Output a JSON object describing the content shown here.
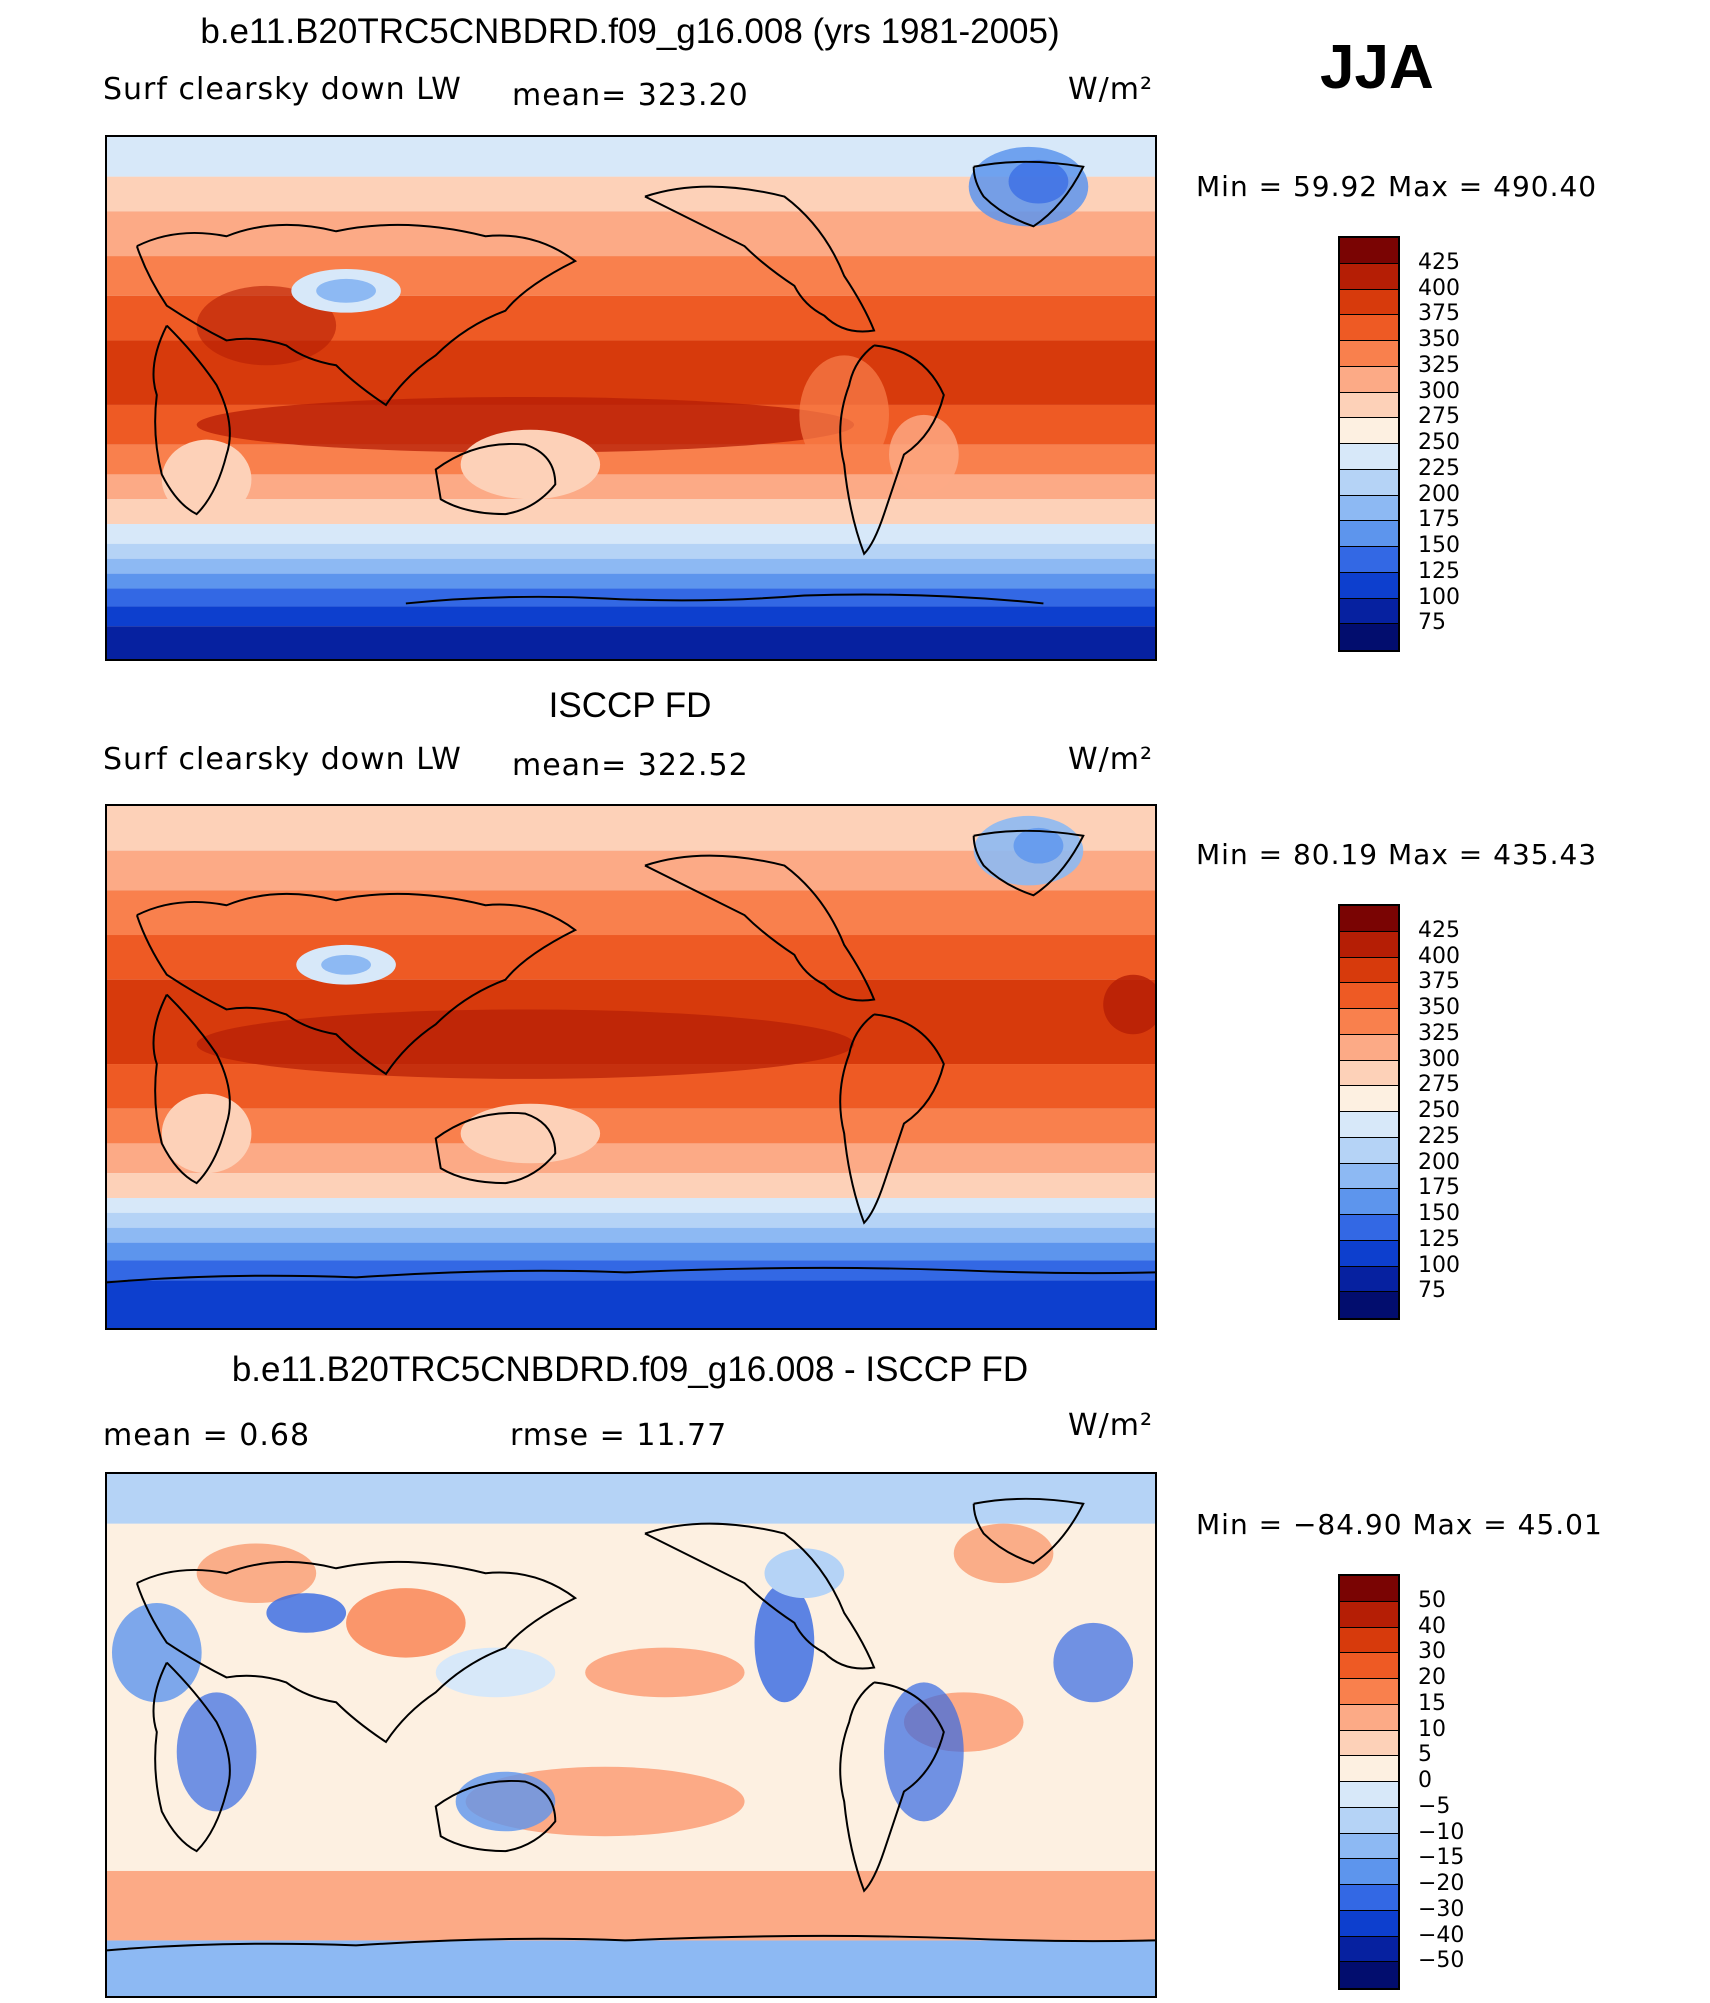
{
  "season": "JJA",
  "panels": [
    {
      "title": "b.e11.B20TRC5CNBDRD.f09_g16.008 (yrs 1981-2005)",
      "variable": "Surf clearsky down LW",
      "stat1": "mean= 323.20",
      "stat2": "",
      "units": "W/m²",
      "minmax": "Min =   59.92  Max  =  490.40",
      "colorbar": {
        "labels": [
          "425",
          "400",
          "375",
          "350",
          "325",
          "300",
          "275",
          "250",
          "225",
          "200",
          "175",
          "150",
          "125",
          "100",
          "75"
        ],
        "colors": [
          "#7a0403",
          "#b51e05",
          "#d73a0c",
          "#ee5a24",
          "#f9804d",
          "#fcaa86",
          "#fdd1b8",
          "#fdf0e1",
          "#d7e8f9",
          "#b5d3f6",
          "#8db9f3",
          "#5d95ed",
          "#3368e4",
          "#0d3fce",
          "#0621a0",
          "#020d6e"
        ]
      }
    },
    {
      "title": "ISCCP FD",
      "variable": "Surf clearsky down LW",
      "stat1": "mean= 322.52",
      "stat2": "",
      "units": "W/m²",
      "minmax": "Min =   80.19  Max  =  435.43",
      "colorbar": {
        "labels": [
          "425",
          "400",
          "375",
          "350",
          "325",
          "300",
          "275",
          "250",
          "225",
          "200",
          "175",
          "150",
          "125",
          "100",
          "75"
        ],
        "colors": [
          "#7a0403",
          "#b51e05",
          "#d73a0c",
          "#ee5a24",
          "#f9804d",
          "#fcaa86",
          "#fdd1b8",
          "#fdf0e1",
          "#d7e8f9",
          "#b5d3f6",
          "#8db9f3",
          "#5d95ed",
          "#3368e4",
          "#0d3fce",
          "#0621a0",
          "#020d6e"
        ]
      }
    },
    {
      "title": "b.e11.B20TRC5CNBDRD.f09_g16.008 - ISCCP FD",
      "variable": "",
      "stat1": "mean =    0.68",
      "stat2": "rmse =   11.77",
      "units": "W/m²",
      "minmax": "Min  = −84.90  Max  =   45.01",
      "colorbar": {
        "labels": [
          "50",
          "40",
          "30",
          "20",
          "15",
          "10",
          "5",
          "0",
          "−5",
          "−10",
          "−15",
          "−20",
          "−30",
          "−40",
          "−50"
        ],
        "colors": [
          "#7a0403",
          "#b51e05",
          "#d73a0c",
          "#ee5a24",
          "#f9804d",
          "#fcaa86",
          "#fdd1b8",
          "#fdf0e1",
          "#d7e8f9",
          "#b5d3f6",
          "#8db9f3",
          "#5d95ed",
          "#3368e4",
          "#0d3fce",
          "#0621a0",
          "#020d6e"
        ]
      }
    }
  ]
}
